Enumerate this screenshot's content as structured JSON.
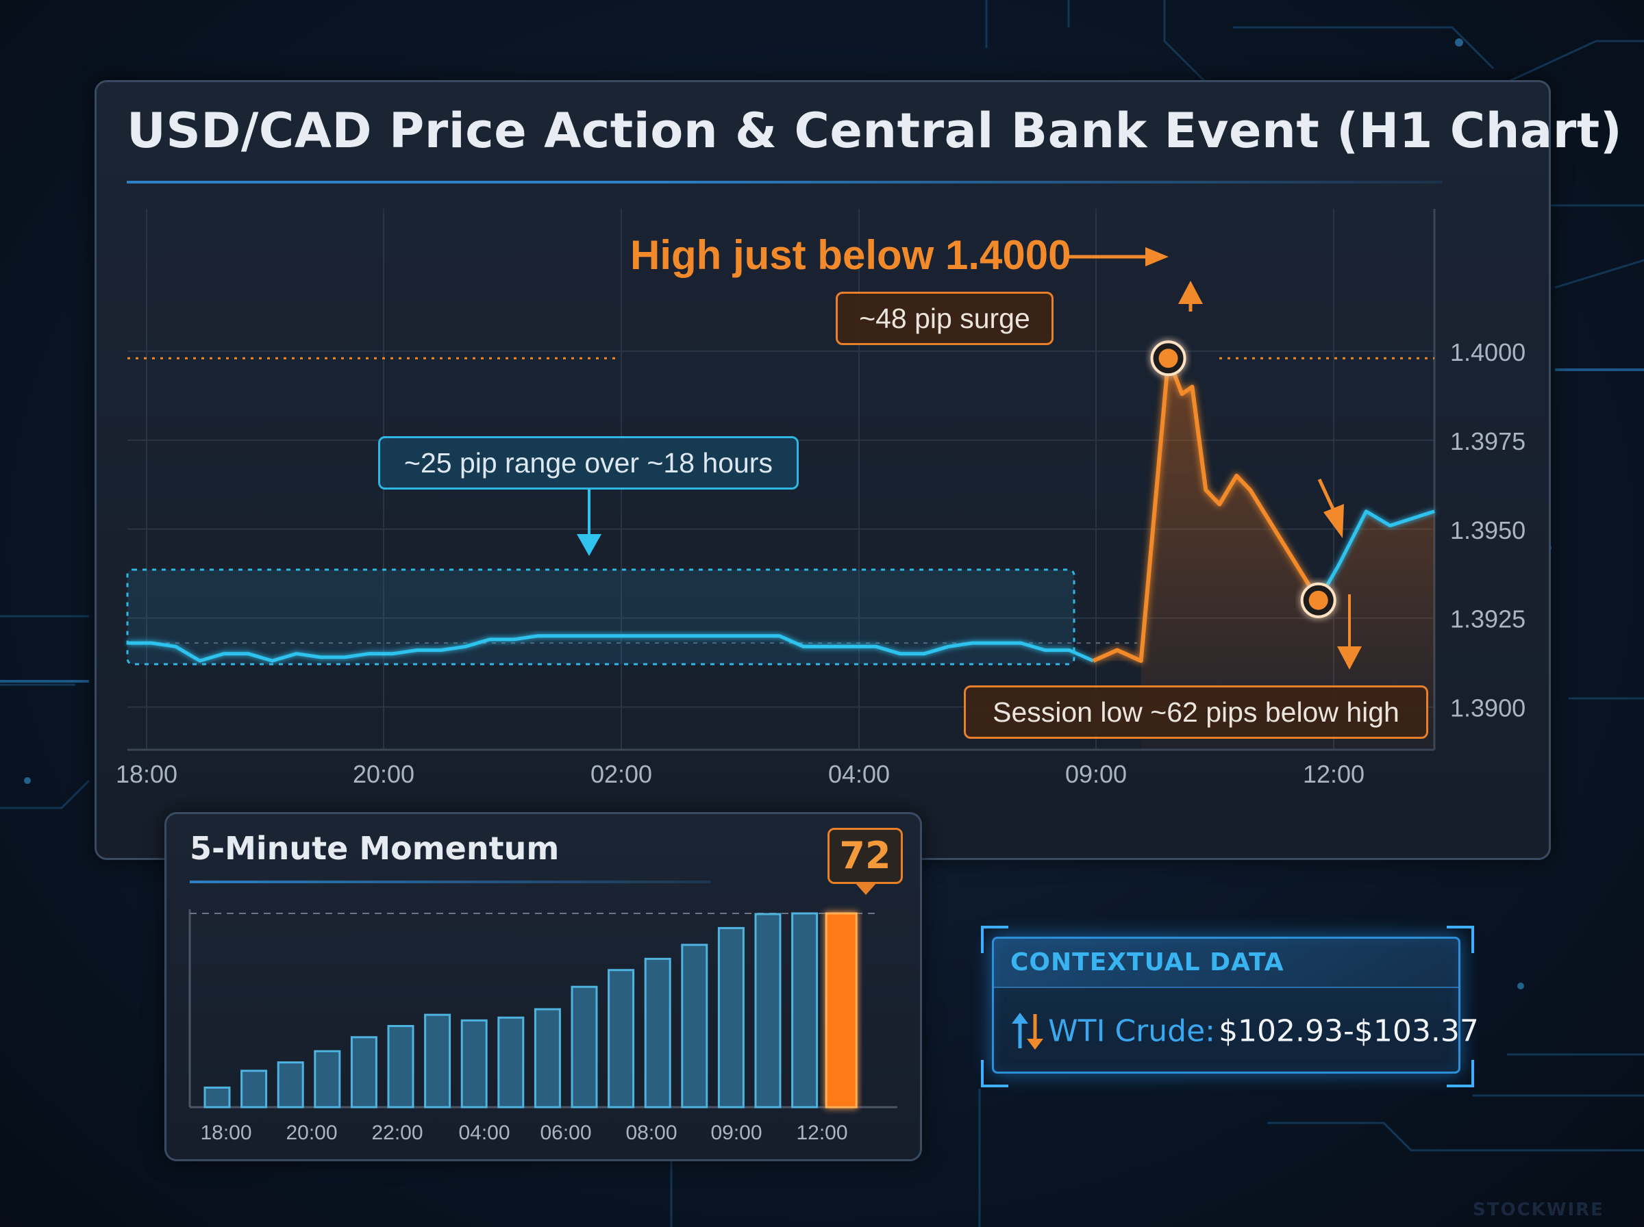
{
  "title": "USD/CAD Price Action & Central Bank Event (H1 Chart)",
  "chart_data": [
    {
      "type": "line",
      "title": "USD/CAD Price Action & Central Bank Event (H1 Chart)",
      "x_ticks": [
        "18:00",
        "20:00",
        "02:00",
        "04:00",
        "09:00",
        "12:00"
      ],
      "y_ticks": [
        "1.4000",
        "1.3975",
        "1.3950",
        "1.3925",
        "1.3900"
      ],
      "ylim": [
        1.3888,
        1.404
      ],
      "grid": true,
      "series": [
        {
          "color": "#2fc3ee",
          "values": [
            1.3918,
            1.3918,
            1.3917,
            1.3913,
            1.3915,
            1.3915,
            1.3913,
            1.3915,
            1.3914,
            1.3914,
            1.3915,
            1.3915,
            1.3916,
            1.3916,
            1.3917,
            1.3919,
            1.3919,
            1.392,
            1.392,
            1.392,
            1.392,
            1.392,
            1.392,
            1.392,
            1.392,
            1.392,
            1.392,
            1.392,
            1.3917,
            1.3917,
            1.3917,
            1.3917,
            1.3915,
            1.3915,
            1.3917,
            1.3918,
            1.3918,
            1.3918,
            1.3916,
            1.3916,
            1.3913
          ]
        },
        {
          "color": "#f28a2b",
          "values": [
            1.3913,
            1.3916,
            1.3913,
            1.3998,
            1.3988,
            1.399,
            1.3961,
            1.3957,
            1.3965,
            1.3961,
            1.393,
            1.394,
            1.3955,
            1.3951,
            1.3955
          ]
        }
      ],
      "annotations": [
        {
          "text": "High just below 1.4000",
          "value": 1.3998
        },
        {
          "text": "~48 pip surge"
        },
        {
          "text": "~25 pip range over ~18 hours"
        },
        {
          "text": "Session low ~62 pips below high",
          "value": 1.393
        }
      ]
    },
    {
      "type": "bar",
      "title": "5-Minute Momentum",
      "x_ticks": [
        "18:00",
        "20:00",
        "22:00",
        "04:00",
        "06:00",
        "08:00",
        "09:00",
        "12:00"
      ],
      "values": [
        7,
        13,
        16,
        20,
        25,
        29,
        33,
        31,
        32,
        35,
        43,
        49,
        53,
        58,
        64,
        69,
        72,
        72
      ],
      "highlight_index": 17,
      "highlight_label": "72",
      "ylim": [
        0,
        80
      ],
      "colors": {
        "bar": "#2a5f80",
        "bar_edge": "#4fb3e0",
        "highlight": "#ff7a18"
      }
    }
  ],
  "context": {
    "title": "CONTEXTUAL DATA",
    "label": "WTI Crude:",
    "value": "$102.93-$103.37"
  },
  "watermark": "STOCKWIRE"
}
